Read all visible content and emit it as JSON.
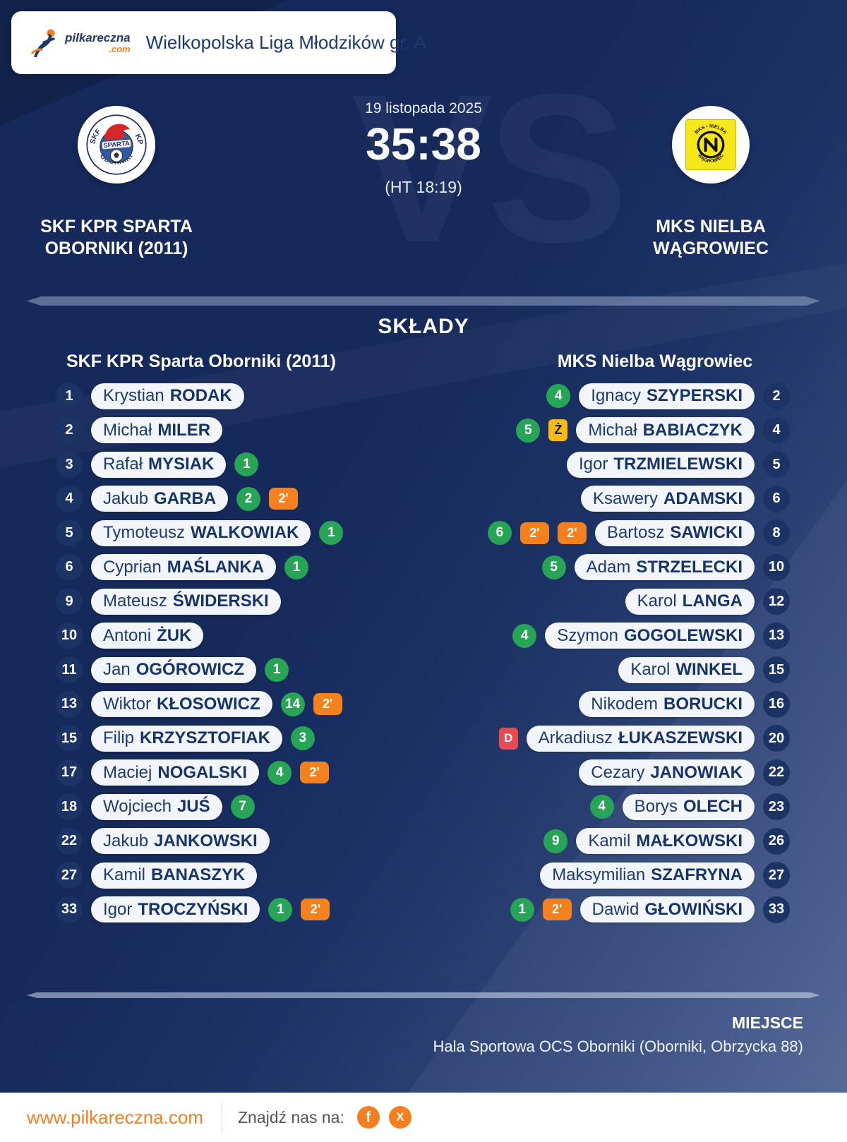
{
  "header": {
    "league": "Wielkopolska Liga Młodzików gr. A",
    "logo": {
      "brand": "pilkareczna",
      "tld": ".com"
    }
  },
  "match": {
    "date": "19 listopada 2025",
    "score": "35:38",
    "halftime": "(HT 18:19)",
    "vs": "VS",
    "home": {
      "name_line1": "SKF KPR SPARTA",
      "name_line2": "OBORNIKI (2011)",
      "crest": {
        "top_left": "SKF",
        "top_right": "KPR",
        "banner": "SPARTA",
        "bottom": "OBORNIKI"
      }
    },
    "away": {
      "name_line1": "MKS NIELBA",
      "name_line2": "WĄGROWIEC",
      "crest": {
        "top": "MKS • NIELBA",
        "bottom": "WĄGROWIEC"
      }
    }
  },
  "lineups": {
    "title": "SKŁADY",
    "home_header": "SKF KPR Sparta Oborniki (2011)",
    "away_header": "MKS Nielba Wągrowiec",
    "card_labels": {
      "susp": "2'",
      "yellow": "Ż",
      "red": "D"
    },
    "home_players": [
      {
        "number": "1",
        "first": "Krystian",
        "last": "RODAK",
        "goals": null,
        "cards": []
      },
      {
        "number": "2",
        "first": "Michał",
        "last": "MILER",
        "goals": null,
        "cards": []
      },
      {
        "number": "3",
        "first": "Rafał",
        "last": "MYSIAK",
        "goals": 1,
        "cards": []
      },
      {
        "number": "4",
        "first": "Jakub",
        "last": "GARBA",
        "goals": 2,
        "cards": [
          "susp"
        ]
      },
      {
        "number": "5",
        "first": "Tymoteusz",
        "last": "WALKOWIAK",
        "goals": 1,
        "cards": []
      },
      {
        "number": "6",
        "first": "Cyprian",
        "last": "MAŚLANKA",
        "goals": 1,
        "cards": []
      },
      {
        "number": "9",
        "first": "Mateusz",
        "last": "ŚWIDERSKI",
        "goals": null,
        "cards": []
      },
      {
        "number": "10",
        "first": "Antoni",
        "last": "ŻUK",
        "goals": null,
        "cards": []
      },
      {
        "number": "11",
        "first": "Jan",
        "last": "OGÓROWICZ",
        "goals": 1,
        "cards": []
      },
      {
        "number": "13",
        "first": "Wiktor",
        "last": "KŁOSOWICZ",
        "goals": 14,
        "cards": [
          "susp"
        ]
      },
      {
        "number": "15",
        "first": "Filip",
        "last": "KRZYSZTOFIAK",
        "goals": 3,
        "cards": []
      },
      {
        "number": "17",
        "first": "Maciej",
        "last": "NOGALSKI",
        "goals": 4,
        "cards": [
          "susp"
        ]
      },
      {
        "number": "18",
        "first": "Wojciech",
        "last": "JUŚ",
        "goals": 7,
        "cards": []
      },
      {
        "number": "22",
        "first": "Jakub",
        "last": "JANKOWSKI",
        "goals": null,
        "cards": []
      },
      {
        "number": "27",
        "first": "Kamil",
        "last": "BANASZYK",
        "goals": null,
        "cards": []
      },
      {
        "number": "33",
        "first": "Igor",
        "last": "TROCZYŃSKI",
        "goals": 1,
        "cards": [
          "susp"
        ]
      }
    ],
    "away_players": [
      {
        "number": "2",
        "first": "Ignacy",
        "last": "SZYPERSKI",
        "goals": 4,
        "cards": []
      },
      {
        "number": "4",
        "first": "Michał",
        "last": "BABIACZYK",
        "goals": 5,
        "cards": [
          "yellow"
        ]
      },
      {
        "number": "5",
        "first": "Igor",
        "last": "TRZMIELEWSKI",
        "goals": null,
        "cards": []
      },
      {
        "number": "6",
        "first": "Ksawery",
        "last": "ADAMSKI",
        "goals": null,
        "cards": []
      },
      {
        "number": "8",
        "first": "Bartosz",
        "last": "SAWICKI",
        "goals": 6,
        "cards": [
          "susp",
          "susp"
        ]
      },
      {
        "number": "10",
        "first": "Adam",
        "last": "STRZELECKI",
        "goals": 5,
        "cards": []
      },
      {
        "number": "12",
        "first": "Karol",
        "last": "LANGA",
        "goals": null,
        "cards": []
      },
      {
        "number": "13",
        "first": "Szymon",
        "last": "GOGOLEWSKI",
        "goals": 4,
        "cards": []
      },
      {
        "number": "15",
        "first": "Karol",
        "last": "WINKEL",
        "goals": null,
        "cards": []
      },
      {
        "number": "16",
        "first": "Nikodem",
        "last": "BORUCKI",
        "goals": null,
        "cards": []
      },
      {
        "number": "20",
        "first": "Arkadiusz",
        "last": "ŁUKASZEWSKI",
        "goals": null,
        "cards": [
          "red"
        ]
      },
      {
        "number": "22",
        "first": "Cezary",
        "last": "JANOWIAK",
        "goals": null,
        "cards": []
      },
      {
        "number": "23",
        "first": "Borys",
        "last": "OLECH",
        "goals": 4,
        "cards": []
      },
      {
        "number": "26",
        "first": "Kamil",
        "last": "MAŁKOWSKI",
        "goals": 9,
        "cards": []
      },
      {
        "number": "27",
        "first": "Maksymilian",
        "last": "SZAFRYNA",
        "goals": null,
        "cards": []
      },
      {
        "number": "33",
        "first": "Dawid",
        "last": "GŁOWIŃSKI",
        "goals": 1,
        "cards": [
          "susp"
        ]
      }
    ]
  },
  "venue": {
    "label": "MIEJSCE",
    "value": "Hala Sportowa OCS Oborniki (Oborniki, Obrzycka 88)"
  },
  "footer": {
    "website": "www.pilkareczna.com",
    "find_us": "Znajdź nas na:",
    "social": [
      {
        "name": "facebook",
        "glyph": "f"
      },
      {
        "name": "x",
        "glyph": "X"
      }
    ]
  },
  "colors": {
    "navy_bg": "#15295a",
    "slate_bg": "#4f6595",
    "accent_orange": "#f57e20",
    "goal_green": "#27a456",
    "card_yellow": "#f6ba13",
    "card_red": "#e84a50",
    "pill_bg": "#f2f5fa",
    "pill_text": "#1d3b72"
  }
}
